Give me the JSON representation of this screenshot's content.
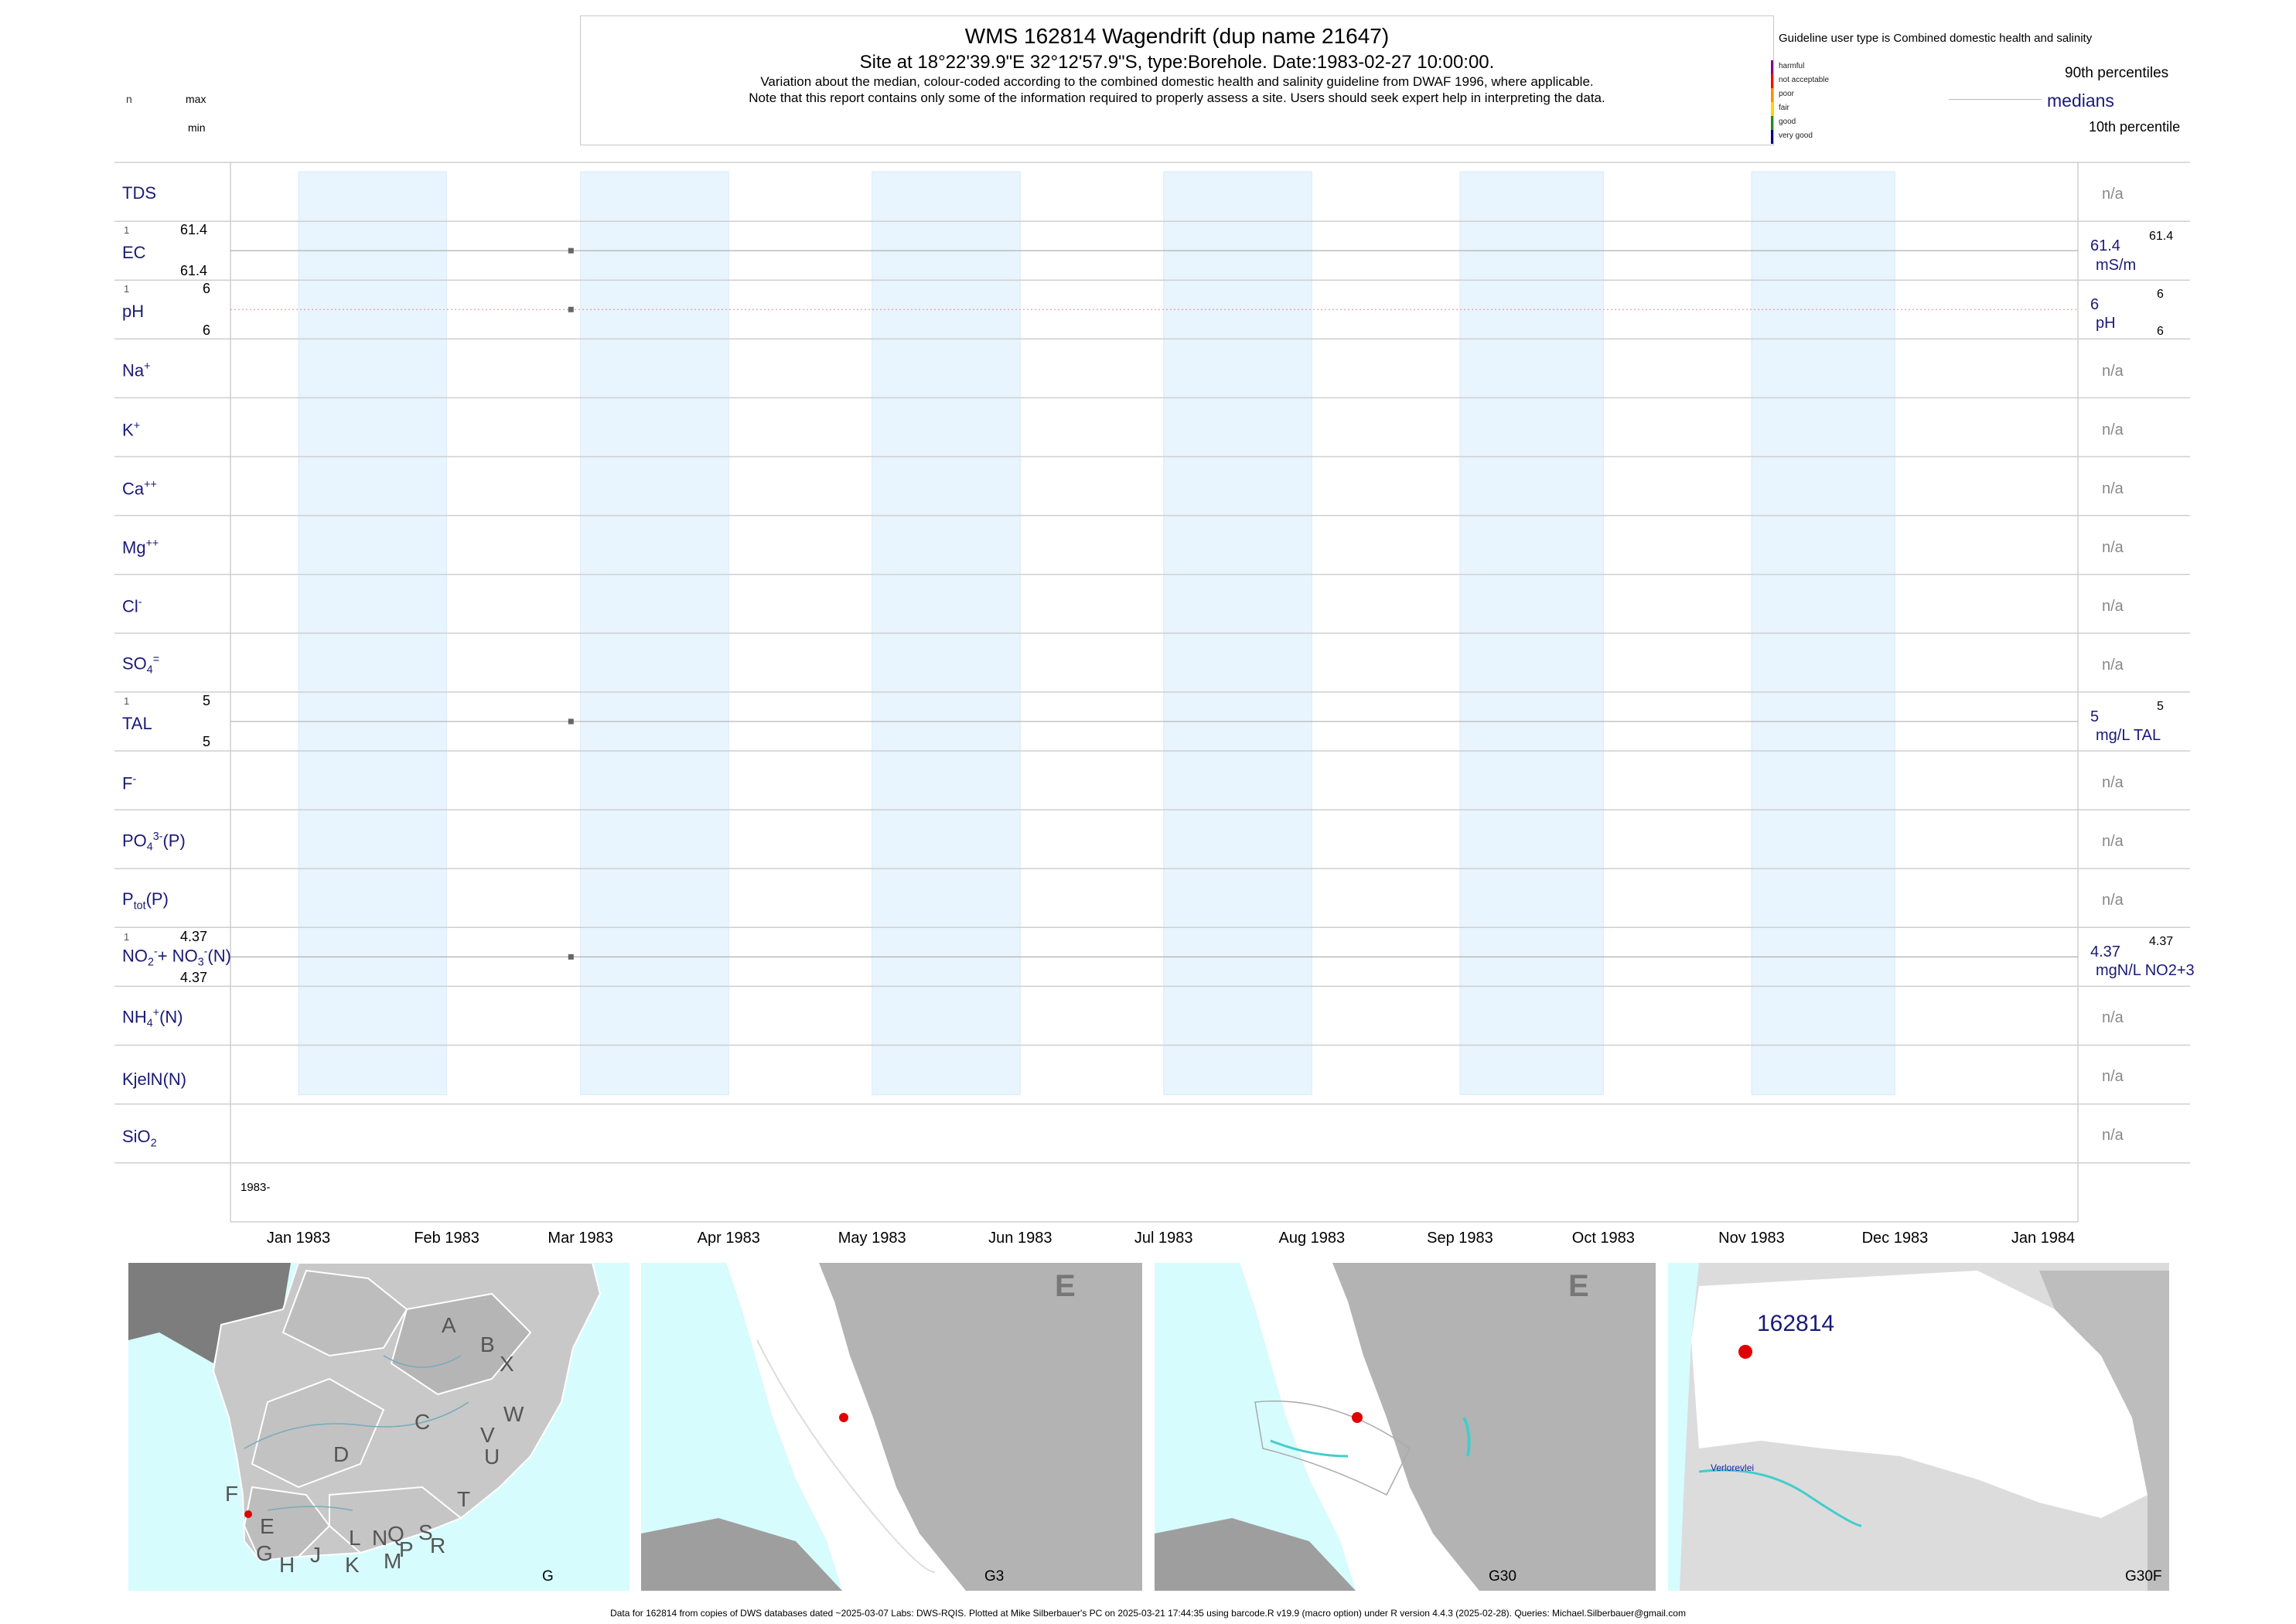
{
  "header": {
    "title": "WMS 162814  Wagendrift (dup name 21647)",
    "subtitle": "Site at 18°22'39.9\"E 32°12'57.9\"S, type:Borehole. Date:1983-02-27 10:00:00.",
    "note1": "Variation about the median,  colour-coded according to the combined domestic health and salinity guideline from DWAF 1996, where applicable.",
    "note2": "Note that this report contains only some of the information required to properly assess a site. Users should seek expert help in interpreting the data."
  },
  "key_left": {
    "n": "n",
    "max": "max",
    "min": "min"
  },
  "legend": {
    "guideline_text": "Guideline user type is Combined domestic health and salinity",
    "classes": [
      {
        "label": "harmful",
        "color": "#8b008b"
      },
      {
        "label": "not acceptable",
        "color": "#ff0000"
      },
      {
        "label": "poor",
        "color": "#ff8c00"
      },
      {
        "label": "fair",
        "color": "#ffd700"
      },
      {
        "label": "good",
        "color": "#228b22"
      },
      {
        "label": "very good",
        "color": "#00008b"
      }
    ],
    "p90": "90th percentiles",
    "medians": "medians",
    "p10": "10th percentile"
  },
  "chart_data": {
    "type": "line",
    "x_label_start": "1983-",
    "x_ticks": [
      "Jan 1983",
      "Feb 1983",
      "Mar 1983",
      "Apr 1983",
      "May 1983",
      "Jun 1983",
      "Jul 1983",
      "Aug 1983",
      "Sep 1983",
      "Oct 1983",
      "Nov 1983",
      "Dec 1983",
      "Jan 1984"
    ],
    "sample_date": "1983-02-27",
    "panels": [
      {
        "id": "tds",
        "label": "TDS",
        "na": "n/a"
      },
      {
        "id": "ec",
        "label": "EC",
        "n": "1",
        "max": "61.4",
        "min": "61.4",
        "median": "61.4",
        "p90": "61.4",
        "unit": "mS/m",
        "value": 61.4
      },
      {
        "id": "ph",
        "label": "pH",
        "n": "1",
        "max": "6",
        "min": "6",
        "median": "6",
        "p90": "6",
        "p10": "6",
        "unit": "pH",
        "value": 6
      },
      {
        "id": "na",
        "label": "Na",
        "na": "n/a"
      },
      {
        "id": "k",
        "label": "K",
        "na": "n/a"
      },
      {
        "id": "ca",
        "label": "Ca",
        "na": "n/a"
      },
      {
        "id": "mg",
        "label": "Mg",
        "na": "n/a"
      },
      {
        "id": "cl",
        "label": "Cl",
        "na": "n/a"
      },
      {
        "id": "so4",
        "label": "SO",
        "na": "n/a"
      },
      {
        "id": "tal",
        "label": "TAL",
        "n": "1",
        "max": "5",
        "min": "5",
        "median": "5",
        "p90": "5",
        "unit": "mg/L TAL",
        "value": 5
      },
      {
        "id": "f",
        "label": "F",
        "na": "n/a"
      },
      {
        "id": "po4",
        "label": "PO",
        "na": "n/a"
      },
      {
        "id": "ptot",
        "label": "P",
        "na": "n/a"
      },
      {
        "id": "no23",
        "label": "NO",
        "n": "1",
        "max": "4.37",
        "min": "4.37",
        "median": "4.37",
        "p90": "4.37",
        "unit": "mgN/L NO2+3",
        "value": 4.37
      },
      {
        "id": "nh4",
        "label": "NH",
        "na": "n/a"
      },
      {
        "id": "kjel",
        "label": "KjelN(N)",
        "na": "n/a"
      },
      {
        "id": "sio2",
        "label": "SiO",
        "na": "n/a"
      }
    ]
  },
  "maps": {
    "map1_code": "G",
    "map2_code": "G3",
    "map3_code": "G30",
    "map4_code": "G30F",
    "region_letter": "E",
    "site_id": "162814",
    "river_label": "Verlorevlei",
    "letters": [
      "A",
      "B",
      "X",
      "W",
      "C",
      "V",
      "U",
      "D",
      "T",
      "F",
      "E",
      "S",
      "R",
      "Q",
      "N",
      "L",
      "P",
      "M",
      "K",
      "J",
      "H",
      "G"
    ]
  },
  "footer": "Data for 162814 from copies of DWS databases dated ~2025-03-07 Labs: DWS-RQIS. Plotted at Mike Silberbauer's PC on 2025-03-21 17:44:35 using barcode.R v19.9 (macro option) under R version 4.4.3 (2025-02-28). Queries: Michael.Silberbauer@gmail.com",
  "colors": {
    "label_blue": "#1a1a78",
    "shade": "#e8f4fe",
    "sea": "#d6fcfe",
    "land": "#c8c8c8",
    "dark_land": "#a0a0a0"
  }
}
